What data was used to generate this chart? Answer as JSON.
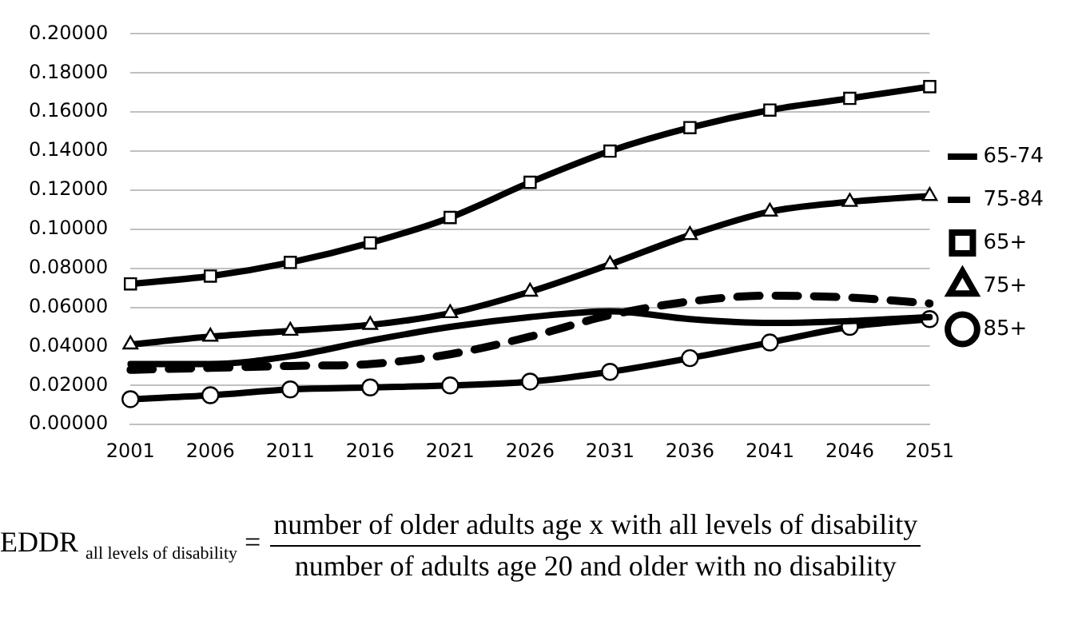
{
  "chart_data": {
    "type": "line",
    "categories": [
      "2001",
      "2006",
      "2011",
      "2016",
      "2021",
      "2026",
      "2031",
      "2036",
      "2041",
      "2046",
      "2051"
    ],
    "series": [
      {
        "name": "65-74",
        "color": "#000000",
        "marker": "none",
        "line_style": "solid",
        "values": [
          0.031,
          0.031,
          0.035,
          0.043,
          0.05,
          0.055,
          0.058,
          0.054,
          0.052,
          0.053,
          0.055
        ]
      },
      {
        "name": "75-84",
        "color": "#000000",
        "marker": "none",
        "line_style": "dashed",
        "values": [
          0.028,
          0.029,
          0.03,
          0.031,
          0.036,
          0.045,
          0.056,
          0.063,
          0.066,
          0.065,
          0.062
        ]
      },
      {
        "name": "65+",
        "color": "#000000",
        "marker": "square",
        "line_style": "solid",
        "values": [
          0.072,
          0.076,
          0.083,
          0.093,
          0.106,
          0.124,
          0.14,
          0.152,
          0.161,
          0.167,
          0.173
        ]
      },
      {
        "name": "75+",
        "color": "#000000",
        "marker": "triangle",
        "line_style": "solid",
        "values": [
          0.041,
          0.045,
          0.048,
          0.051,
          0.057,
          0.068,
          0.082,
          0.097,
          0.109,
          0.114,
          0.117
        ]
      },
      {
        "name": "85+",
        "color": "#000000",
        "marker": "circle",
        "line_style": "solid",
        "values": [
          0.013,
          0.015,
          0.018,
          0.019,
          0.02,
          0.022,
          0.027,
          0.034,
          0.042,
          0.05,
          0.054
        ]
      }
    ],
    "ylim": [
      0,
      0.2
    ],
    "yticks": [
      {
        "value": 0,
        "label": "0.00000"
      },
      {
        "value": 0.02,
        "label": "0.02000"
      },
      {
        "value": 0.04,
        "label": "0.04000"
      },
      {
        "value": 0.06,
        "label": "0.06000"
      },
      {
        "value": 0.08,
        "label": "0.08000"
      },
      {
        "value": 0.1,
        "label": "0.10000"
      },
      {
        "value": 0.12,
        "label": "0.12000"
      },
      {
        "value": 0.14,
        "label": "0.14000"
      },
      {
        "value": 0.16,
        "label": "0.16000"
      },
      {
        "value": 0.18,
        "label": "0.18000"
      },
      {
        "value": 0.2,
        "label": "0.20000"
      }
    ],
    "grid": "y",
    "legend": "right",
    "annotations": [
      "EDDR $_{all levels of disability}$ =",
      "number of older adults age x with all levels of disability",
      "number of adults age 20 and older with no disability"
    ]
  }
}
